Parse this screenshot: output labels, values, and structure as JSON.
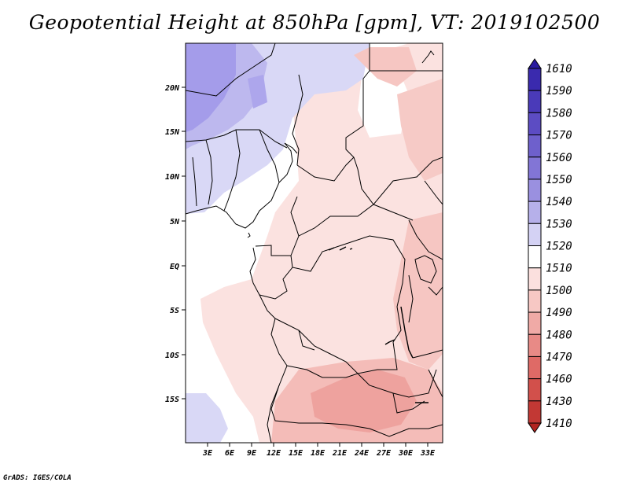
{
  "title": "Geopotential Height at 850hPa [gpm], VT: 2019102500",
  "footer": "GrADS: IGES/COLA",
  "map": {
    "variable": "Geopotential Height",
    "level": "850hPa",
    "units": "gpm",
    "valid_time": "2019102500",
    "region": "Central Africa",
    "lon_range": [
      0,
      35
    ],
    "lat_range": [
      -20,
      25
    ],
    "lon_ticks": [
      "3E",
      "6E",
      "9E",
      "12E",
      "15E",
      "18E",
      "21E",
      "24E",
      "27E",
      "30E",
      "33E"
    ],
    "lat_ticks": [
      "20N",
      "15N",
      "10N",
      "5N",
      "EQ",
      "5S",
      "10S",
      "15S"
    ]
  },
  "colorbar": {
    "levels": [
      "1610",
      "1590",
      "1580",
      "1570",
      "1560",
      "1550",
      "1540",
      "1530",
      "1520",
      "1510",
      "1500",
      "1490",
      "1480",
      "1470",
      "1460",
      "1430",
      "1410"
    ],
    "colors": [
      "#2a1aa0",
      "#3a2aae",
      "#4a3ab9",
      "#5c4cc3",
      "#6e60cc",
      "#8275d6",
      "#9a90e0",
      "#b6b0ea",
      "#d4d2f4",
      "#ffffff",
      "#fbe0de",
      "#f7c8c4",
      "#f0aaa6",
      "#e88a86",
      "#df6a66",
      "#d2504b",
      "#c23834",
      "#b22420"
    ]
  }
}
